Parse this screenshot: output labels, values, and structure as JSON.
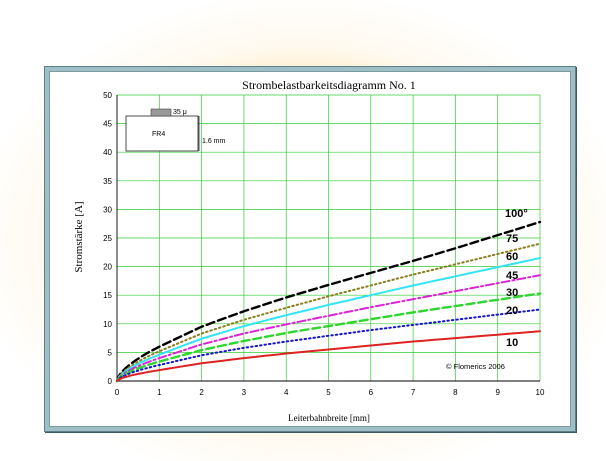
{
  "chart_data": {
    "type": "line",
    "title": "Strombelastbarkeitsdiagramm No. 1",
    "xlabel": "Leiterbahnbreite [mm]",
    "ylabel": "Stromstärke [A]",
    "xlim": [
      0,
      10
    ],
    "ylim": [
      0,
      50
    ],
    "xticks": [
      "0",
      "1",
      "2",
      "3",
      "4",
      "5",
      "6",
      "7",
      "8",
      "9",
      "10"
    ],
    "yticks": [
      "0",
      "5",
      "10",
      "15",
      "20",
      "25",
      "30",
      "35",
      "40",
      "45",
      "50"
    ],
    "grid": true,
    "x": [
      0,
      1,
      2,
      3,
      4,
      5,
      6,
      7,
      8,
      9,
      10
    ],
    "series": [
      {
        "name": "100°",
        "color": "#000000",
        "dash": "dashed",
        "values": [
          0,
          6.0,
          9.5,
          12.2,
          14.6,
          16.8,
          18.9,
          21.0,
          23.2,
          25.5,
          27.8
        ]
      },
      {
        "name": "75",
        "color": "#8b7d1e",
        "dash": "dotted",
        "values": [
          0,
          5.2,
          8.3,
          10.7,
          12.8,
          14.8,
          16.7,
          18.6,
          20.4,
          22.2,
          24.0
        ]
      },
      {
        "name": "60",
        "color": "#33e5f2",
        "dash": "solid",
        "values": [
          0,
          4.6,
          7.4,
          9.6,
          11.5,
          13.3,
          15.0,
          16.7,
          18.3,
          19.9,
          21.5
        ]
      },
      {
        "name": "45",
        "color": "#e020d8",
        "dash": "dashdot",
        "values": [
          0,
          4.0,
          6.4,
          8.3,
          9.9,
          11.4,
          12.9,
          14.3,
          15.7,
          17.1,
          18.5
        ]
      },
      {
        "name": "30",
        "color": "#2fd62f",
        "dash": "dashed",
        "values": [
          0,
          3.4,
          5.4,
          7.0,
          8.4,
          9.6,
          10.8,
          12.0,
          13.1,
          14.2,
          15.3
        ]
      },
      {
        "name": "20",
        "color": "#1616d0",
        "dash": "dotted",
        "values": [
          0,
          2.8,
          4.5,
          5.8,
          6.9,
          7.9,
          8.9,
          9.8,
          10.7,
          11.6,
          12.5
        ]
      },
      {
        "name": "10",
        "color": "#dd2222",
        "dash": "solid",
        "values": [
          0,
          1.9,
          3.1,
          4.0,
          4.8,
          5.5,
          6.2,
          6.9,
          7.5,
          8.1,
          8.7
        ]
      }
    ],
    "annotations": {
      "copyright": "© Flomerics 2006",
      "inset_material": "FR4",
      "inset_copper": "35 μ",
      "inset_thickness": "1.6 mm"
    }
  }
}
